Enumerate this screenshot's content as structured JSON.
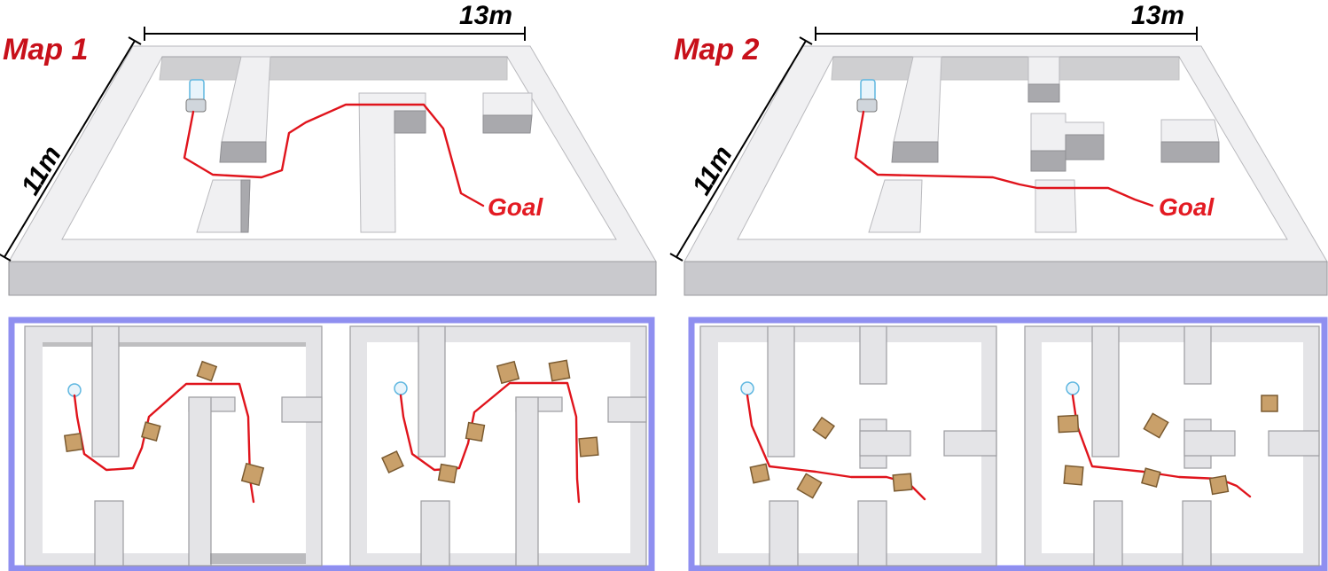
{
  "map1": {
    "title": "Map 1",
    "width_label": "13m",
    "height_label": "11m",
    "goal_label": "Goal"
  },
  "map2": {
    "title": "Map 2",
    "width_label": "13m",
    "height_label": "11m",
    "goal_label": "Goal"
  },
  "colors": {
    "title": "#c8101a",
    "path": "#e0141c",
    "frame": "#8f8ff0",
    "box": "#c9a06a",
    "wall": "#e4e4e7"
  }
}
